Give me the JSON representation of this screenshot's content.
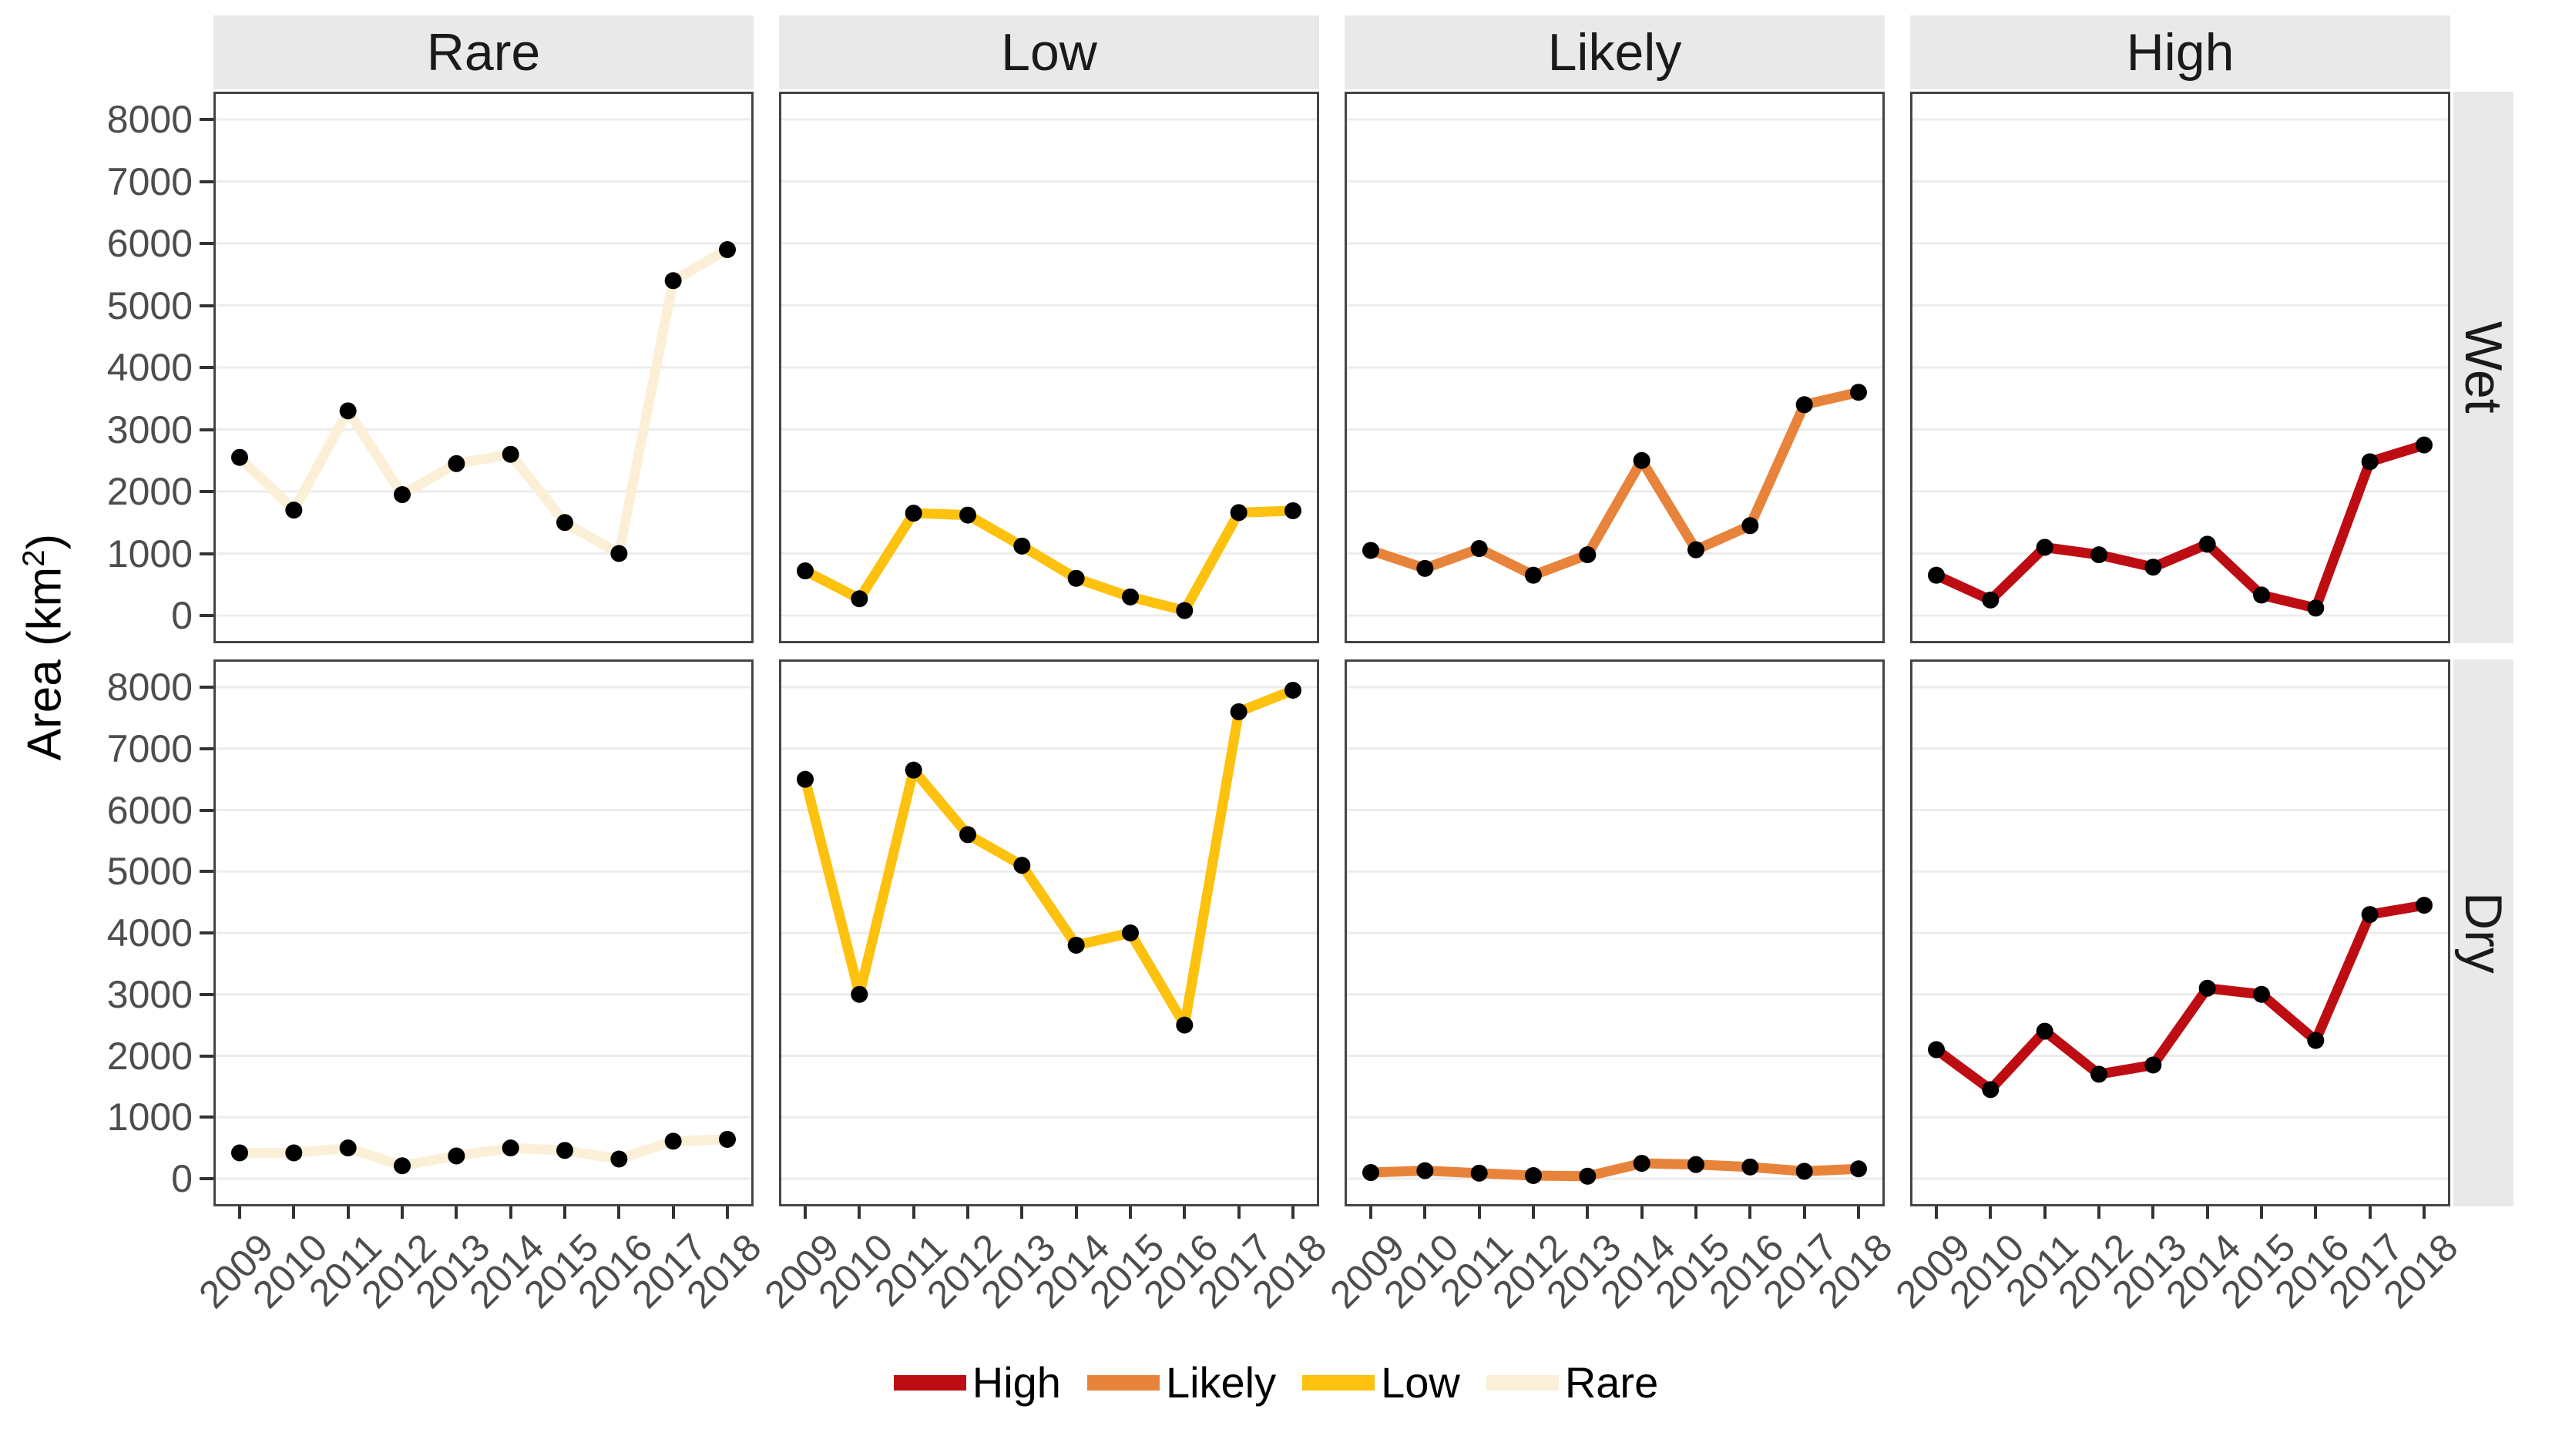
{
  "chart_data": {
    "type": "line",
    "title": "",
    "xlabel": "",
    "ylabel": "Area (km²)",
    "ylabel_prefix": "Area (km",
    "ylabel_sup": "2",
    "ylabel_suffix": ")",
    "x": [
      2009,
      2010,
      2011,
      2012,
      2013,
      2014,
      2015,
      2016,
      2017,
      2018
    ],
    "ylim": [
      0,
      8000
    ],
    "yticks": [
      0,
      1000,
      2000,
      3000,
      4000,
      5000,
      6000,
      7000,
      8000
    ],
    "grid": "horizontal-major-only",
    "legend_position": "bottom",
    "facet_columns": [
      "Rare",
      "Low",
      "Likely",
      "High"
    ],
    "facet_rows": [
      "Wet",
      "Dry"
    ],
    "palette": {
      "High": "#bd0d12",
      "Likely": "#e8833c",
      "Low": "#fdc10e",
      "Rare": "#fbf0d7"
    },
    "point_color": "#000000",
    "series": [
      {
        "facet_column": "Rare",
        "facet_row": "Wet",
        "name": "Rare",
        "values": [
          2550,
          1700,
          3300,
          1950,
          2450,
          2600,
          1500,
          1000,
          5400,
          5900
        ]
      },
      {
        "facet_column": "Low",
        "facet_row": "Wet",
        "name": "Low",
        "values": [
          720,
          270,
          1650,
          1620,
          1120,
          600,
          300,
          80,
          1660,
          1690
        ]
      },
      {
        "facet_column": "Likely",
        "facet_row": "Wet",
        "name": "Likely",
        "values": [
          1050,
          760,
          1080,
          650,
          980,
          2500,
          1060,
          1450,
          3400,
          3600
        ]
      },
      {
        "facet_column": "High",
        "facet_row": "Wet",
        "name": "High",
        "values": [
          650,
          250,
          1100,
          980,
          780,
          1150,
          330,
          120,
          2480,
          2750
        ]
      },
      {
        "facet_column": "Rare",
        "facet_row": "Dry",
        "name": "Rare",
        "values": [
          420,
          420,
          500,
          210,
          370,
          500,
          460,
          320,
          610,
          640
        ]
      },
      {
        "facet_column": "Low",
        "facet_row": "Dry",
        "name": "Low",
        "values": [
          6500,
          3000,
          6650,
          5600,
          5100,
          3800,
          4000,
          2500,
          7600,
          7950
        ]
      },
      {
        "facet_column": "Likely",
        "facet_row": "Dry",
        "name": "Likely",
        "values": [
          100,
          130,
          90,
          50,
          40,
          250,
          230,
          190,
          120,
          160
        ]
      },
      {
        "facet_column": "High",
        "facet_row": "Dry",
        "name": "High",
        "values": [
          2100,
          1450,
          2400,
          1700,
          1850,
          3100,
          3000,
          2250,
          4300,
          4450
        ]
      }
    ],
    "legend": [
      "High",
      "Likely",
      "Low",
      "Rare"
    ]
  },
  "colors": {
    "strip_background": "#e9e9e9",
    "panel_background": "#ffffff",
    "gridline": "#ececec",
    "panel_border": "#454545",
    "axis_text": "#4d4d4d",
    "tick_mark": "#333333"
  }
}
